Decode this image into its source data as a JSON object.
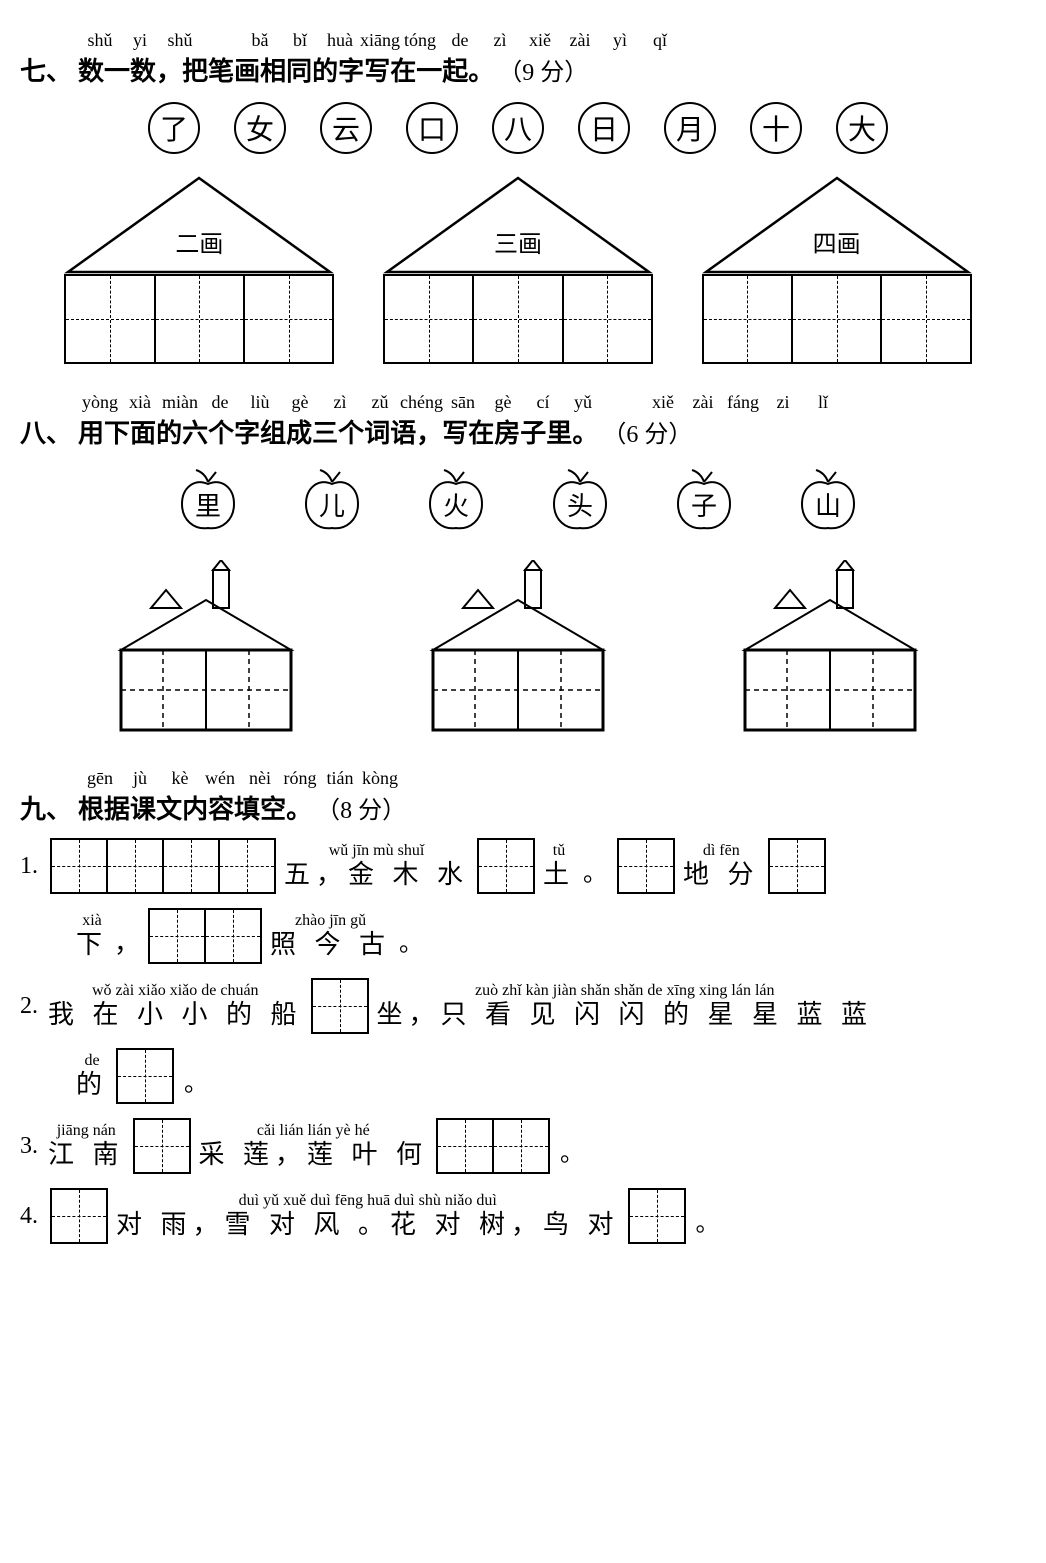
{
  "colors": {
    "ink": "#000000",
    "bg": "#ffffff"
  },
  "section7": {
    "number": "七、",
    "pinyin": [
      "shǔ",
      "yi",
      "shǔ",
      "",
      "bǎ",
      "bǐ",
      "huà",
      "xiāng",
      "tóng",
      "de",
      "zì",
      "xiě",
      "zài",
      "yì",
      "qǐ"
    ],
    "hanzi": [
      "数",
      "一",
      "数",
      "，",
      "把",
      "笔",
      "画",
      "相",
      "同",
      "的",
      "字",
      "写",
      "在",
      "一",
      "起"
    ],
    "tail": "。",
    "score": "（9 分）",
    "circles": [
      "了",
      "女",
      "云",
      "口",
      "八",
      "日",
      "月",
      "十",
      "大"
    ],
    "houses": [
      {
        "label": "二画",
        "cells": 3
      },
      {
        "label": "三画",
        "cells": 3
      },
      {
        "label": "四画",
        "cells": 3
      }
    ]
  },
  "section8": {
    "number": "八、",
    "pinyin": [
      "yòng",
      "xià",
      "miàn",
      "de",
      "liù",
      "gè",
      "zì",
      "zǔ",
      "chéng",
      "sān",
      "gè",
      "cí",
      "yǔ",
      "",
      "xiě",
      "zài",
      "fáng",
      "zi",
      "lǐ"
    ],
    "hanzi": [
      "用",
      "下",
      "面",
      "的",
      "六",
      "个",
      "字",
      "组",
      "成",
      "三",
      "个",
      "词",
      "语",
      "，",
      "写",
      "在",
      "房",
      "子",
      "里"
    ],
    "tail": "。",
    "score": "（6 分）",
    "apples": [
      "里",
      "儿",
      "火",
      "头",
      "子",
      "山"
    ],
    "house_count": 3
  },
  "section9": {
    "number": "九、",
    "pinyin": [
      "gēn",
      "jù",
      "kè",
      "wén",
      "nèi",
      "róng",
      "tián",
      "kòng"
    ],
    "hanzi": [
      "根",
      "据",
      "课",
      "文",
      "内",
      "容",
      "填",
      "空"
    ],
    "tail": "。",
    "score": "（8 分）",
    "q1": {
      "num": "1.",
      "parts": [
        {
          "type": "box",
          "cells": 4
        },
        {
          "type": "text",
          "py": "wǔ   jīn mù shuǐ",
          "hz": "五，金 木 水"
        },
        {
          "type": "box",
          "cells": 1
        },
        {
          "type": "text",
          "py": "tǔ",
          "hz": "土"
        },
        {
          "type": "punct",
          "v": "。"
        },
        {
          "type": "box",
          "cells": 1
        },
        {
          "type": "text",
          "py": "dì fēn",
          "hz": "地 分"
        },
        {
          "type": "box",
          "cells": 1
        }
      ],
      "line2": [
        {
          "type": "text",
          "py": "xià",
          "hz": "下"
        },
        {
          "type": "punct",
          "v": "，"
        },
        {
          "type": "box",
          "cells": 2
        },
        {
          "type": "text",
          "py": "zhào  jīn  gǔ",
          "hz": "照  今  古"
        },
        {
          "type": "punct",
          "v": "。"
        }
      ]
    },
    "q2": {
      "num": "2.",
      "parts": [
        {
          "type": "text",
          "py": "wǒ zài xiǎo xiǎo de chuán",
          "hz": "我 在 小 小 的 船"
        },
        {
          "type": "box",
          "cells": 1
        },
        {
          "type": "text",
          "py": "zuò  zhǐ kàn jiàn shǎn shǎn de xīng xing lán lán",
          "hz": "坐，只 看 见 闪 闪 的 星 星 蓝 蓝"
        }
      ],
      "line2": [
        {
          "type": "text",
          "py": "de",
          "hz": "的"
        },
        {
          "type": "box",
          "cells": 1
        },
        {
          "type": "punct",
          "v": "。"
        }
      ]
    },
    "q3": {
      "num": "3.",
      "parts": [
        {
          "type": "text",
          "py": "jiāng nán",
          "hz": "江 南"
        },
        {
          "type": "box",
          "cells": 1
        },
        {
          "type": "text",
          "py": "cǎi lián   lián yè hé",
          "hz": "采 莲，莲 叶 何"
        },
        {
          "type": "box",
          "cells": 2
        },
        {
          "type": "punct",
          "v": "。"
        }
      ]
    },
    "q4": {
      "num": "4.",
      "parts": [
        {
          "type": "box",
          "cells": 1
        },
        {
          "type": "text",
          "py": "duì yǔ   xuě duì fēng     huā duì shù   niǎo duì",
          "hz": "对 雨，雪 对 风 。花 对 树，鸟 对"
        },
        {
          "type": "box",
          "cells": 1
        },
        {
          "type": "punct",
          "v": "。"
        }
      ]
    }
  }
}
